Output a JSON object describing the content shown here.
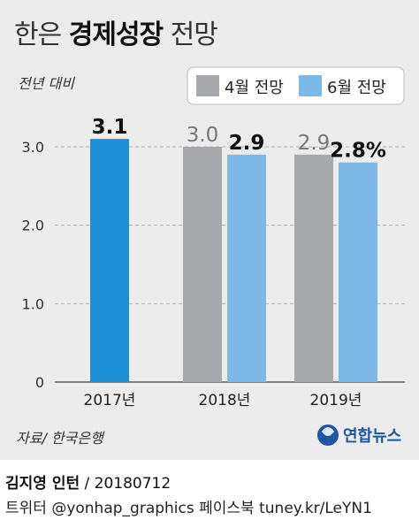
{
  "title": {
    "prefix": "한은",
    "highlight": "경제성장",
    "suffix": "전망"
  },
  "unit_label": "전년 대비",
  "source": "자료/ 한국은행",
  "logo_text": "연합뉴스",
  "byline": {
    "author": "김지영 인턴",
    "date": "/ 20180712"
  },
  "contact": "트위터 @yonhap_graphics  페이스북 tuney.kr/LeYN1",
  "colors": {
    "april": "#a7a9ac",
    "june": "#7db9e6",
    "single_2017": "#1c8fd6",
    "background": "#ececec"
  },
  "chart_data": {
    "type": "bar",
    "ylabel": "전년 대비",
    "ylim": [
      0,
      3.5
    ],
    "yticks": [
      {
        "value": 0,
        "label": "0"
      },
      {
        "value": 1,
        "label": "1.0"
      },
      {
        "value": 2,
        "label": "2.0"
      },
      {
        "value": 3,
        "label": "3.0"
      }
    ],
    "grid": true,
    "legend_position": "top-right",
    "categories": [
      "2017년",
      "2018년",
      "2019년"
    ],
    "series": [
      {
        "name": "4월 전망",
        "values": [
          null,
          3.0,
          2.9
        ],
        "labels": [
          null,
          "3.0",
          "2.9"
        ],
        "color": "#a7a9ac"
      },
      {
        "name": "6월 전망",
        "values": [
          null,
          2.9,
          2.8
        ],
        "labels": [
          null,
          "2.9",
          "2.8%"
        ],
        "color": "#7db9e6"
      }
    ],
    "single_bar": {
      "category": "2017년",
      "value": 3.1,
      "label": "3.1",
      "color": "#1c8fd6"
    }
  }
}
